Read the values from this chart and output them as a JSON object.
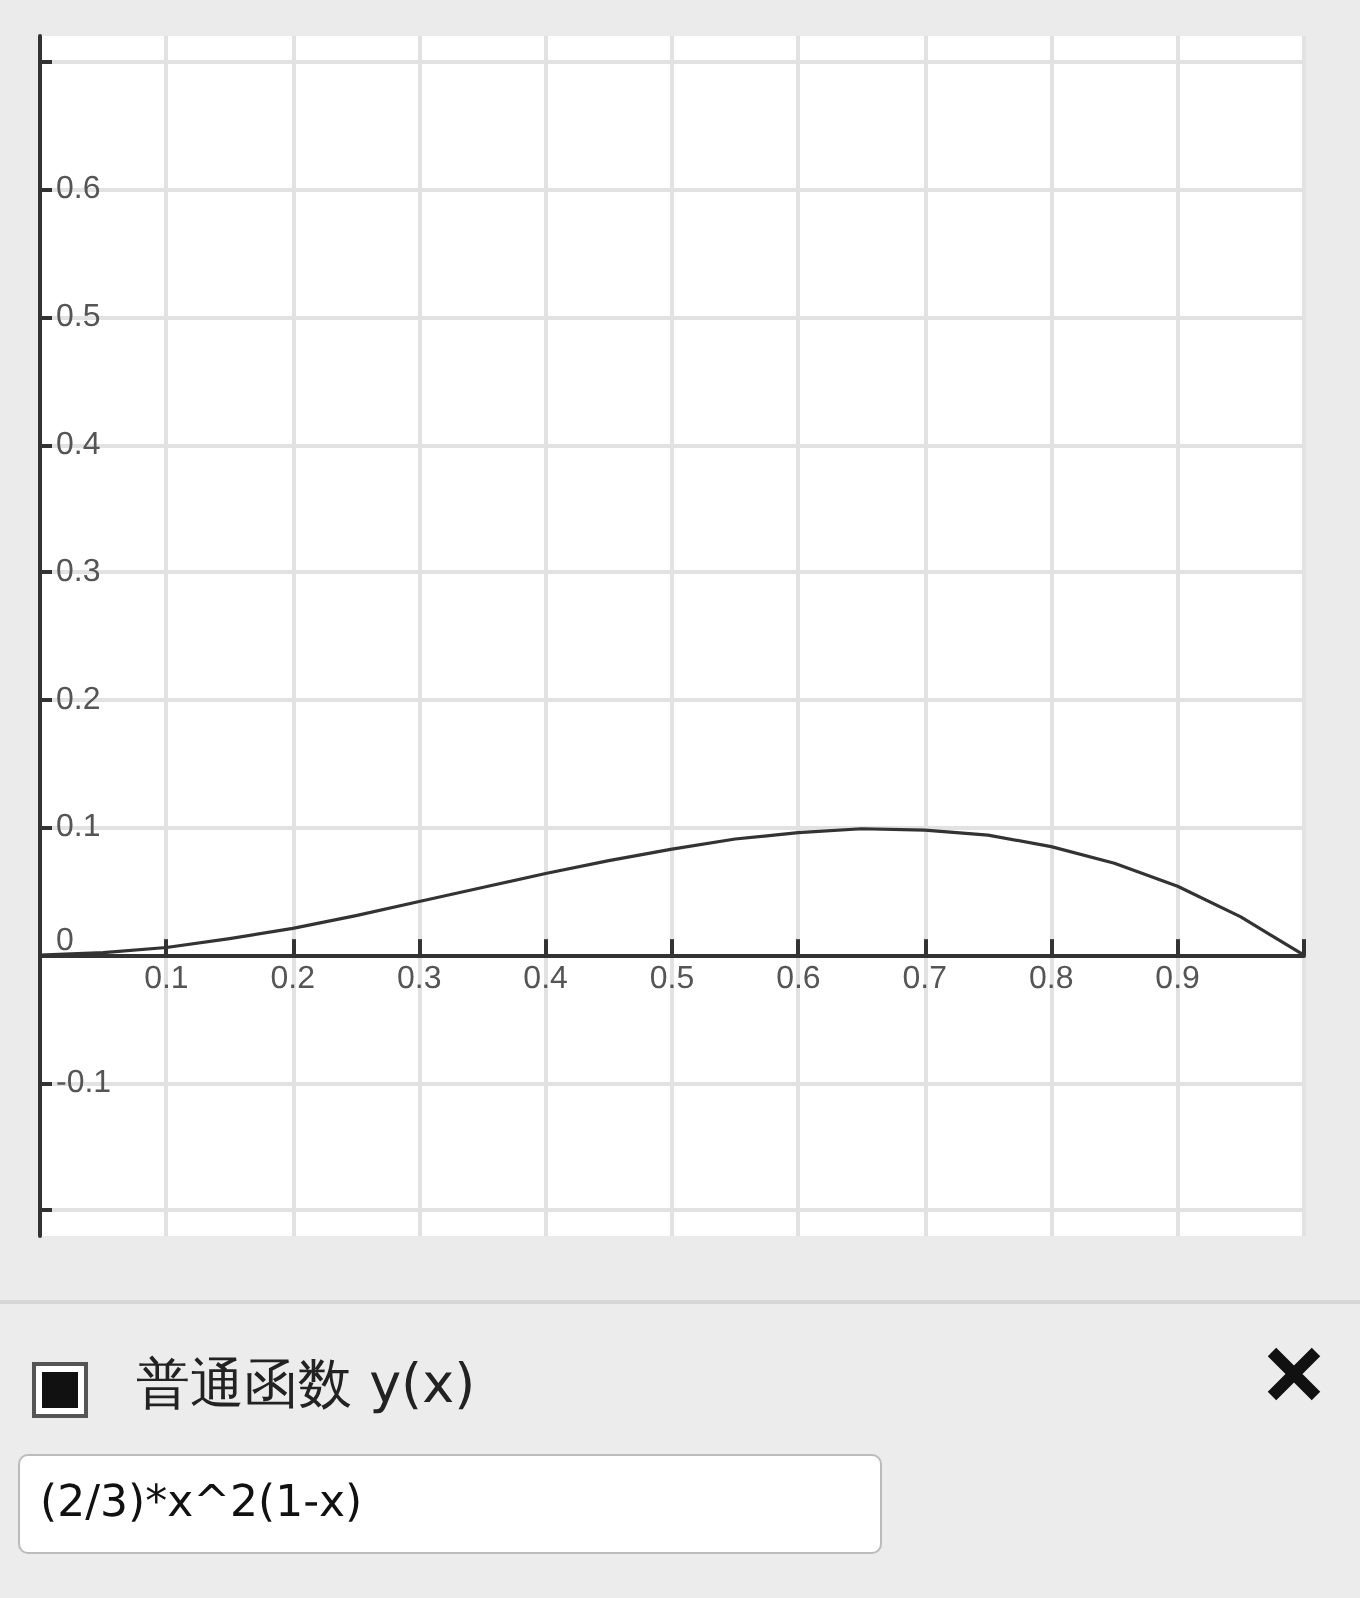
{
  "chart_data": {
    "type": "line",
    "x": [
      0,
      0.05,
      0.1,
      0.15,
      0.2,
      0.25,
      0.3,
      0.35,
      0.4,
      0.45,
      0.5,
      0.55,
      0.6,
      0.65,
      0.7,
      0.75,
      0.8,
      0.85,
      0.9,
      0.95,
      1
    ],
    "series": [
      {
        "color": "#333333",
        "values": [
          0,
          0.002,
          0.006,
          0.013,
          0.021,
          0.031,
          0.042,
          0.053,
          0.064,
          0.074,
          0.083,
          0.091,
          0.096,
          0.099,
          0.098,
          0.094,
          0.085,
          0.072,
          0.054,
          0.03,
          0
        ]
      }
    ],
    "xlim": [
      0,
      1
    ],
    "xticks": [
      {
        "value": 0,
        "label": null
      },
      0.1,
      0.2,
      0.3,
      0.4,
      0.5,
      0.6,
      0.7,
      0.8,
      0.9,
      {
        "value": 1,
        "label": null
      }
    ],
    "ylim": [
      -0.22,
      0.72
    ],
    "yticks": [
      {
        "value": -0.2,
        "label": null
      },
      -0.1,
      0,
      0.1,
      0.2,
      0.3,
      0.4,
      0.5,
      0.6,
      {
        "value": 0.7,
        "label": null
      }
    ],
    "grid": true,
    "marker": "none",
    "line_style": "solid",
    "annotations": [
      "普通函数 y(x)",
      "(2/3)*x^2(1-x)"
    ]
  }
}
